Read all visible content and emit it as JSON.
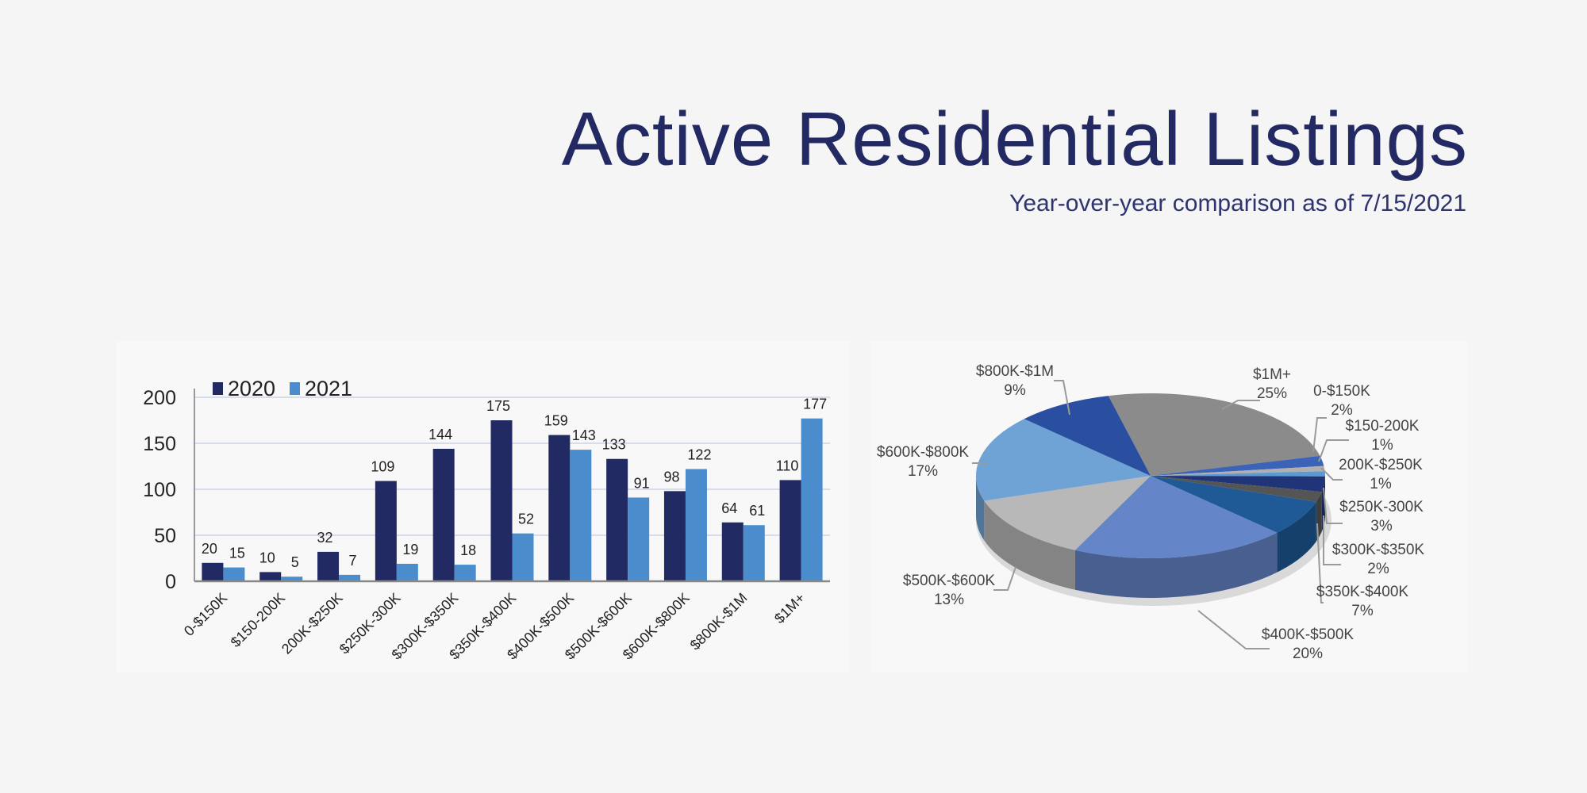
{
  "header": {
    "title": "Active Residential Listings",
    "subtitle": "Year-over-year comparison as of 7/15/2021"
  },
  "chart_data": [
    {
      "type": "bar",
      "categories": [
        "0-$150K",
        "$150-200K",
        "200K-$250K",
        "$250K-300K",
        "$300K-$350K",
        "$350K-$400K",
        "$400K-$500K",
        "$500K-$600K",
        "$600K-$800K",
        "$800K-$1M",
        "$1M+"
      ],
      "series": [
        {
          "name": "2020",
          "color": "#222a63",
          "values": [
            20,
            10,
            32,
            109,
            144,
            175,
            159,
            133,
            98,
            64,
            110
          ]
        },
        {
          "name": "2021",
          "color": "#4a8ccc",
          "values": [
            15,
            5,
            7,
            19,
            18,
            52,
            143,
            91,
            122,
            61,
            177
          ]
        }
      ],
      "yticks": [
        "0",
        "50",
        "100",
        "150",
        "200"
      ],
      "ylim": [
        0,
        230
      ],
      "grid": true,
      "legend": "top-left"
    },
    {
      "type": "pie",
      "style": "3d",
      "slices": [
        {
          "label": "$1M+",
          "pct": "25%",
          "value": 25,
          "color": "#8b8b8b"
        },
        {
          "label": "0-$150K",
          "pct": "2%",
          "value": 2,
          "color": "#3b63b8"
        },
        {
          "label": "$150-200K",
          "pct": "1%",
          "value": 1,
          "color": "#b0b0b0"
        },
        {
          "label": "200K-$250K",
          "pct": "1%",
          "value": 1,
          "color": "#5b9bd5"
        },
        {
          "label": "$250K-300K",
          "pct": "3%",
          "value": 3,
          "color": "#1f3577"
        },
        {
          "label": "$300K-$350K",
          "pct": "2%",
          "value": 2,
          "color": "#555555"
        },
        {
          "label": "$350K-$400K",
          "pct": "7%",
          "value": 7,
          "color": "#1f5a96"
        },
        {
          "label": "$400K-$500K",
          "pct": "20%",
          "value": 20,
          "color": "#6485c8"
        },
        {
          "label": "$500K-$600K",
          "pct": "13%",
          "value": 13,
          "color": "#b8b8b8"
        },
        {
          "label": "$600K-$800K",
          "pct": "17%",
          "value": 17,
          "color": "#6fa3d6"
        },
        {
          "label": "$800K-$1M",
          "pct": "9%",
          "value": 9,
          "color": "#2a4fa0"
        }
      ]
    }
  ]
}
